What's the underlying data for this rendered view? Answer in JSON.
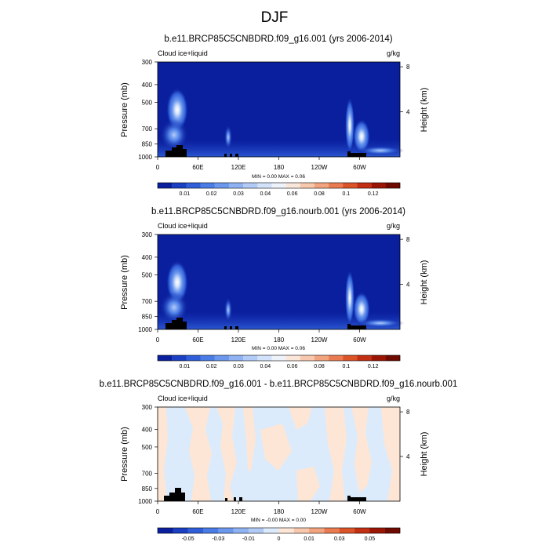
{
  "page_title": "DJF",
  "colors": {
    "background_dark": "#0a1f9e",
    "land_mask": "#000000",
    "diff_negative": "#dcebfb",
    "diff_positive": "#fde6d6"
  },
  "chart_data": [
    {
      "type": "heatmap",
      "title": "b.e11.BRCP85C5CNBDRD.f09_g16.001 (yrs 2006-2014)",
      "left_label": "Cloud ice+liquid",
      "right_label": "g/kg",
      "ylabel": "Pressure (mb)",
      "y2label": "Height (km)",
      "xticks": [
        "0",
        "60E",
        "120E",
        "180",
        "120W",
        "60W"
      ],
      "yticks": [
        "300",
        "400",
        "500",
        "700",
        "850",
        "1000"
      ],
      "y2ticks": [
        "8",
        "4"
      ],
      "xlim": [
        0,
        360
      ],
      "ylim": [
        1000,
        300
      ],
      "stats": "MIN =    0.00  MAX =   0.06",
      "colorbar_labels": [
        "0.01",
        "0.02",
        "0.03",
        "0.04",
        "0.06",
        "0.08",
        "0.1",
        "0.12"
      ],
      "colorbar_colors": [
        "#0a1f9e",
        "#1a3fc2",
        "#2f5ed8",
        "#4a7ce6",
        "#6b97ed",
        "#8fb2f2",
        "#b2cbf6",
        "#d3e2fa",
        "#eef3fb",
        "#fbe6da",
        "#f7c8ad",
        "#f2a47e",
        "#ea7b50",
        "#db5428",
        "#c22f12",
        "#9b1505",
        "#6e0a00"
      ],
      "features": [
        {
          "lon": 35,
          "p_top": 570,
          "p_bot": 990,
          "peak": 0.06
        },
        {
          "lon": 105,
          "p_top": 720,
          "p_bot": 960,
          "peak": 0.035
        },
        {
          "lon": 285,
          "p_top": 560,
          "p_bot": 990,
          "peak": 0.06
        },
        {
          "lon": 305,
          "p_top": 680,
          "p_bot": 990,
          "peak": 0.05
        }
      ]
    },
    {
      "type": "heatmap",
      "title": "b.e11.BRCP85C5CNBDRD.f09_g16.nourb.001 (yrs 2006-2014)",
      "left_label": "Cloud ice+liquid",
      "right_label": "g/kg",
      "ylabel": "Pressure (mb)",
      "y2label": "Height (km)",
      "xticks": [
        "0",
        "60E",
        "120E",
        "180",
        "120W",
        "60W"
      ],
      "yticks": [
        "300",
        "400",
        "500",
        "700",
        "850",
        "1000"
      ],
      "y2ticks": [
        "8",
        "4"
      ],
      "xlim": [
        0,
        360
      ],
      "ylim": [
        1000,
        300
      ],
      "stats": "MIN =    0.00  MAX =   0.06",
      "colorbar_labels": [
        "0.01",
        "0.02",
        "0.03",
        "0.04",
        "0.06",
        "0.08",
        "0.1",
        "0.12"
      ],
      "colorbar_colors": [
        "#0a1f9e",
        "#1a3fc2",
        "#2f5ed8",
        "#4a7ce6",
        "#6b97ed",
        "#8fb2f2",
        "#b2cbf6",
        "#d3e2fa",
        "#eef3fb",
        "#fbe6da",
        "#f7c8ad",
        "#f2a47e",
        "#ea7b50",
        "#db5428",
        "#c22f12",
        "#9b1505",
        "#6e0a00"
      ],
      "features": [
        {
          "lon": 35,
          "p_top": 570,
          "p_bot": 990,
          "peak": 0.06
        },
        {
          "lon": 105,
          "p_top": 720,
          "p_bot": 960,
          "peak": 0.035
        },
        {
          "lon": 285,
          "p_top": 560,
          "p_bot": 990,
          "peak": 0.06
        },
        {
          "lon": 305,
          "p_top": 680,
          "p_bot": 990,
          "peak": 0.05
        }
      ]
    },
    {
      "type": "heatmap",
      "title": "b.e11.BRCP85C5CNBDRD.f09_g16.001 - b.e11.BRCP85C5CNBDRD.f09_g16.nourb.001",
      "left_label": "Cloud ice+liquid",
      "right_label": "g/kg",
      "ylabel": "Pressure (mb)",
      "y2label": "Height (km)",
      "xticks": [
        "0",
        "60E",
        "120E",
        "180",
        "120W",
        "60W"
      ],
      "yticks": [
        "300",
        "400",
        "500",
        "700",
        "850",
        "1000"
      ],
      "y2ticks": [
        "8",
        "4"
      ],
      "xlim": [
        0,
        360
      ],
      "ylim": [
        1000,
        300
      ],
      "stats": "MIN =   -0.00  MAX =   0.00",
      "colorbar_labels": [
        "-0.05",
        "-0.03",
        "-0.01",
        "0",
        "0.01",
        "0.03",
        "0.05"
      ],
      "colorbar_colors": [
        "#0a1f9e",
        "#1a3fc2",
        "#2f5ed8",
        "#4a7ce6",
        "#6b97ed",
        "#8fb2f2",
        "#b2cbf6",
        "#dcebfb",
        "#fde6d6",
        "#f7c8ad",
        "#f2a47e",
        "#ea7b50",
        "#db5428",
        "#c22f12",
        "#9b1505",
        "#6e0a00"
      ],
      "features": []
    }
  ]
}
